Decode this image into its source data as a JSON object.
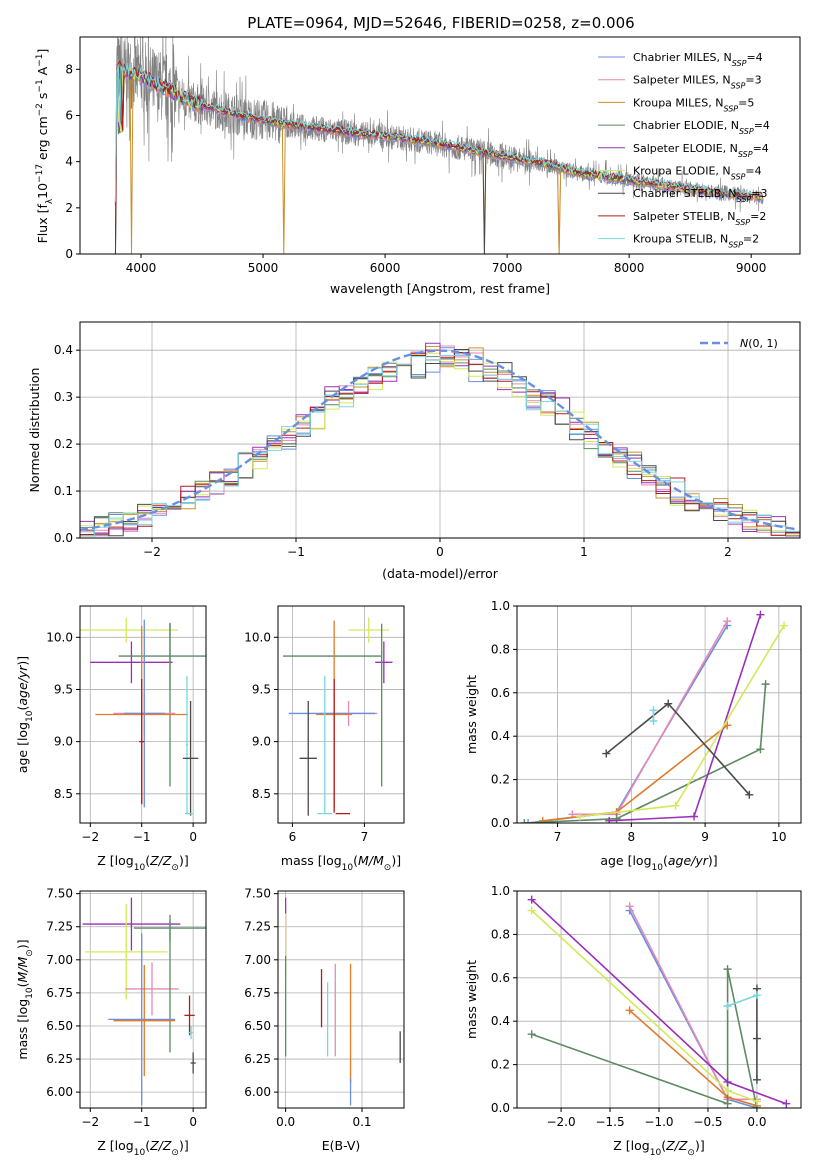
{
  "title": "PLATE=0964, MJD=52646, FIBERID=0258, z=0.006",
  "colors": {
    "Chabrier MILES": "#6b8fe0",
    "Salpeter MILES": "#e48ab8",
    "Kroupa MILES": "#c8902c",
    "Chabrier ELODIE": "#5d8a62",
    "Salpeter ELODIE": "#9a30b8",
    "Kroupa ELODIE": "#d6e85a",
    "Chabrier STELIB": "#4a4a4a",
    "Salpeter STELIB": "#b01c1c",
    "Kroupa STELIB": "#78d6df",
    "data": "#808080",
    "gauss": "#6a8fe0",
    "orange": "#e07b2a"
  },
  "chart_data": [
    {
      "id": "spectrum",
      "type": "line",
      "title": "PLATE=0964, MJD=52646, FIBERID=0258, z=0.006",
      "xlabel": "wavelength [Angstrom, rest frame]",
      "ylabel": "Flux [f_λ 10^-17 erg cm^-2 s^-1 A^-1]",
      "xlim": [
        3500,
        9400
      ],
      "ylim": [
        0,
        9.4
      ],
      "xticks": [
        4000,
        5000,
        6000,
        7000,
        8000,
        9000
      ],
      "yticks": [
        0,
        2,
        4,
        6,
        8
      ],
      "legend_position": "top-right",
      "legend": [
        {
          "label": "Chabrier MILES, N",
          "sub": "SSP",
          "suffix": "=4"
        },
        {
          "label": "Salpeter MILES, N",
          "sub": "SSP",
          "suffix": "=3"
        },
        {
          "label": "Kroupa MILES, N",
          "sub": "SSP",
          "suffix": "=5"
        },
        {
          "label": "Chabrier ELODIE, N",
          "sub": "SSP",
          "suffix": "=4"
        },
        {
          "label": "Salpeter ELODIE, N",
          "sub": "SSP",
          "suffix": "=4"
        },
        {
          "label": "Kroupa ELODIE, N",
          "sub": "SSP",
          "suffix": "=4"
        },
        {
          "label": "Chabrier STELIB, N",
          "sub": "SSP",
          "suffix": "=3"
        },
        {
          "label": "Salpeter STELIB, N",
          "sub": "SSP",
          "suffix": "=2"
        },
        {
          "label": "Kroupa STELIB, N",
          "sub": "SSP",
          "suffix": "=2"
        }
      ],
      "continuum": [
        [
          3800,
          8.0
        ],
        [
          3900,
          7.9
        ],
        [
          4000,
          7.7
        ],
        [
          4100,
          7.4
        ],
        [
          4200,
          7.2
        ],
        [
          4400,
          6.6
        ],
        [
          4600,
          6.3
        ],
        [
          4800,
          6.0
        ],
        [
          5000,
          5.8
        ],
        [
          5200,
          5.6
        ],
        [
          5500,
          5.4
        ],
        [
          5800,
          5.2
        ],
        [
          6000,
          5.1
        ],
        [
          6300,
          4.9
        ],
        [
          6500,
          4.7
        ],
        [
          6800,
          4.4
        ],
        [
          7000,
          4.2
        ],
        [
          7300,
          3.9
        ],
        [
          7600,
          3.5
        ],
        [
          8000,
          3.2
        ],
        [
          8500,
          2.8
        ],
        [
          9000,
          2.5
        ],
        [
          9100,
          2.45
        ]
      ]
    },
    {
      "id": "residuals",
      "type": "histogram",
      "xlabel": "(data-model)/error",
      "ylabel": "Normed distribution",
      "xlim": [
        -2.5,
        2.5
      ],
      "ylim": [
        0,
        0.46
      ],
      "xticks": [
        -2,
        -1,
        0,
        1,
        2
      ],
      "yticks": [
        0.0,
        0.1,
        0.2,
        0.3,
        0.4
      ],
      "legend_position": "top-right",
      "legend": "N(0,1)"
    },
    {
      "id": "age-vs-Z",
      "type": "errorbar",
      "xlabel": "Z [log10(Z/Z⊙)]",
      "ylabel": "age [log10(age/yr)]",
      "xlim": [
        -2.2,
        0.25
      ],
      "ylim": [
        8.22,
        10.3
      ],
      "xticks": [
        -2,
        -1,
        0
      ],
      "yticks": [
        8.5,
        9.0,
        9.5,
        10.0
      ],
      "points": [
        {
          "m": "Kroupa ELODIE",
          "x": -1.3,
          "y": 10.07,
          "xerr": 1.0,
          "yerr": 0.12
        },
        {
          "m": "Salpeter ELODIE",
          "x": -1.2,
          "y": 9.76,
          "xerr": 0.8,
          "yerr": 0.2
        },
        {
          "m": "Chabrier ELODIE",
          "x": -0.45,
          "y": 9.82,
          "xerr": 1.0,
          "yerr": 0.32
        },
        {
          "m": "Chabrier ELODIE",
          "x": -0.45,
          "y": 9.35,
          "xerr": 0.0,
          "yerr": 0.78
        },
        {
          "m": "Salpeter MILES",
          "x": -0.95,
          "y": 9.27,
          "xerr": 0.6,
          "yerr": 0.2
        },
        {
          "m": "Chabrier MILES",
          "x": -0.95,
          "y": 9.27,
          "xerr": 0.4,
          "yerr": 0.9
        },
        {
          "m": "Kroupa MILES",
          "x": -1.0,
          "y": 9.26,
          "xerr": 0.9,
          "yerr": 0.85
        },
        {
          "m": "Salpeter STELIB",
          "x": -1.0,
          "y": 9.0,
          "xerr": 0.05,
          "yerr": 0.6
        },
        {
          "m": "Kroupa STELIB",
          "x": -0.12,
          "y": 8.97,
          "xerr": 0.02,
          "yerr": 0.66
        },
        {
          "m": "Chabrier STELIB",
          "x": -0.05,
          "y": 8.84,
          "xerr": 0.15,
          "yerr": 0.55
        },
        {
          "m": "Kroupa STELIB",
          "x": -0.08,
          "y": 8.31,
          "xerr": 0.08,
          "yerr": 0.0
        }
      ]
    },
    {
      "id": "age-vs-mass",
      "type": "errorbar",
      "xlabel": "mass [log10(M/M⊙)]",
      "ylabel": "",
      "xlim": [
        5.8,
        7.55
      ],
      "ylim": [
        8.22,
        10.3
      ],
      "xticks": [
        6,
        7
      ],
      "yticks": [
        8.5,
        9.0,
        9.5,
        10.0
      ],
      "points": [
        {
          "m": "Kroupa ELODIE",
          "x": 7.06,
          "y": 10.07,
          "xerr": 0.28,
          "yerr": 0.12
        },
        {
          "m": "Salpeter ELODIE",
          "x": 7.27,
          "y": 9.76,
          "xerr": 0.12,
          "yerr": 0.2
        },
        {
          "m": "Chabrier ELODIE",
          "x": 6.55,
          "y": 9.82,
          "xerr": 0.68,
          "yerr": 0.0
        },
        {
          "m": "Chabrier ELODIE",
          "x": 7.24,
          "y": 9.35,
          "xerr": 0.0,
          "yerr": 0.78
        },
        {
          "m": "Salpeter MILES",
          "x": 6.78,
          "y": 9.27,
          "xerr": 0.4,
          "yerr": 0.12
        },
        {
          "m": "Chabrier MILES",
          "x": 6.55,
          "y": 9.27,
          "xerr": 0.6,
          "yerr": 0.0
        },
        {
          "m": "Kroupa MILES",
          "x": 6.58,
          "y": 9.26,
          "xerr": 0.25,
          "yerr": 0.9
        },
        {
          "m": "Kroupa STELIB",
          "x": 6.45,
          "y": 8.97,
          "xerr": 0.0,
          "yerr": 0.66
        },
        {
          "m": "Salpeter STELIB",
          "x": 6.58,
          "y": 8.96,
          "xerr": 0.0,
          "yerr": 0.64
        },
        {
          "m": "Chabrier STELIB",
          "x": 6.22,
          "y": 8.84,
          "xerr": 0.12,
          "yerr": 0.55
        },
        {
          "m": "Kroupa STELIB",
          "x": 6.45,
          "y": 8.31,
          "xerr": 0.1,
          "yerr": 0.0
        },
        {
          "m": "Salpeter STELIB",
          "x": 6.7,
          "y": 8.31,
          "xerr": 0.1,
          "yerr": 0.0
        }
      ]
    },
    {
      "id": "massweight-vs-age",
      "type": "line",
      "xlabel": "age [log10(age/yr)]",
      "ylabel": "mass weight",
      "xlim": [
        6.45,
        10.3
      ],
      "ylim": [
        0,
        1.0
      ],
      "xticks": [
        7,
        8,
        9,
        10
      ],
      "yticks": [
        0.0,
        0.2,
        0.4,
        0.6,
        0.8,
        1.0
      ],
      "series": [
        {
          "m": "Chabrier MILES",
          "x": [
            6.6,
            7.8,
            9.3
          ],
          "y": [
            0.0,
            0.05,
            0.91
          ]
        },
        {
          "m": "Salpeter MILES",
          "x": [
            7.2,
            7.8,
            9.3
          ],
          "y": [
            0.04,
            0.04,
            0.93
          ]
        },
        {
          "m": "Kroupa MILES",
          "x": [
            6.8,
            7.8,
            9.3
          ],
          "y": [
            0.01,
            0.05,
            0.45
          ]
        },
        {
          "m": "Chabrier ELODIE",
          "x": [
            6.55,
            7.8,
            9.75,
            9.82
          ],
          "y": [
            0.0,
            0.02,
            0.34,
            0.64
          ]
        },
        {
          "m": "Salpeter ELODIE",
          "x": [
            7.7,
            8.85,
            9.75
          ],
          "y": [
            0.01,
            0.03,
            0.96
          ]
        },
        {
          "m": "Kroupa ELODIE",
          "x": [
            7.3,
            8.6,
            10.07
          ],
          "y": [
            0.03,
            0.08,
            0.91
          ]
        },
        {
          "m": "Chabrier STELIB",
          "x": [
            7.66,
            8.5,
            9.6
          ],
          "y": [
            0.32,
            0.55,
            0.13
          ]
        },
        {
          "m": "Salpeter STELIB",
          "x": [],
          "y": []
        },
        {
          "m": "Kroupa STELIB",
          "x": [
            8.3,
            8.3
          ],
          "y": [
            0.52,
            0.47
          ]
        }
      ]
    },
    {
      "id": "mass-vs-Z",
      "type": "errorbar",
      "xlabel": "Z [log10(Z/Z⊙)]",
      "ylabel": "mass [log10(M/M⊙)]",
      "xlim": [
        -2.2,
        0.25
      ],
      "ylim": [
        5.88,
        7.52
      ],
      "xticks": [
        -2,
        -1,
        0
      ],
      "yticks": [
        6.0,
        6.25,
        6.5,
        6.75,
        7.0,
        7.25,
        7.5
      ],
      "points": [
        {
          "m": "Salpeter ELODIE",
          "x": -1.2,
          "y": 7.27,
          "xerr": 0.95,
          "yerr": 0.2
        },
        {
          "m": "Chabrier ELODIE",
          "x": -0.45,
          "y": 7.24,
          "xerr": 0.7,
          "yerr": 0.1
        },
        {
          "m": "Kroupa ELODIE",
          "x": -1.3,
          "y": 7.06,
          "xerr": 0.8,
          "yerr": 0.36
        },
        {
          "m": "Salpeter MILES",
          "x": -0.8,
          "y": 6.78,
          "xerr": 0.52,
          "yerr": 0.2
        },
        {
          "m": "Chabrier ELODIE",
          "x": -0.45,
          "y": 6.8,
          "xerr": 0.0,
          "yerr": 0.5
        },
        {
          "m": "Chabrier MILES",
          "x": -1.0,
          "y": 6.55,
          "xerr": 0.65,
          "yerr": 0.65
        },
        {
          "m": "Kroupa MILES",
          "x": -0.95,
          "y": 6.54,
          "xerr": 0.6,
          "yerr": 0.42
        },
        {
          "m": "Salpeter STELIB",
          "x": -0.07,
          "y": 6.58,
          "xerr": 0.1,
          "yerr": 0.15
        },
        {
          "m": "Kroupa STELIB",
          "x": -0.04,
          "y": 6.45,
          "xerr": 0.05,
          "yerr": 0.05
        },
        {
          "m": "Chabrier STELIB",
          "x": 0.0,
          "y": 6.22,
          "xerr": 0.05,
          "yerr": 0.08
        }
      ]
    },
    {
      "id": "mass-vs-EBV",
      "type": "errorbar",
      "xlabel": "E(B-V)",
      "ylabel": "",
      "xlim": [
        -0.01,
        0.155
      ],
      "ylim": [
        5.88,
        7.52
      ],
      "xticks": [
        0.0,
        0.1
      ],
      "yticks": [
        6.0,
        6.25,
        6.5,
        6.75,
        7.0,
        7.25,
        7.5
      ],
      "points": [
        {
          "m": "Salpeter ELODIE",
          "x": 0.0,
          "y": 7.25,
          "xerr": 0,
          "yerr": 0.22
        },
        {
          "m": "Kroupa ELODIE",
          "x": 0.0,
          "y": 7.1,
          "xerr": 0,
          "yerr": 0.25
        },
        {
          "m": "Chabrier ELODIE",
          "x": 0.0,
          "y": 6.65,
          "xerr": 0,
          "yerr": 0.38
        },
        {
          "m": "Salpeter STELIB",
          "x": 0.047,
          "y": 6.71,
          "xerr": 0,
          "yerr": 0.22
        },
        {
          "m": "Kroupa STELIB",
          "x": 0.055,
          "y": 6.55,
          "xerr": 0,
          "yerr": 0.28
        },
        {
          "m": "Salpeter MILES",
          "x": 0.065,
          "y": 6.62,
          "xerr": 0,
          "yerr": 0.35
        },
        {
          "m": "Kroupa MILES",
          "x": 0.085,
          "y": 6.52,
          "xerr": 0,
          "yerr": 0.45
        },
        {
          "m": "Chabrier MILES",
          "x": 0.085,
          "y": 6.0,
          "xerr": 0,
          "yerr": 0.1
        },
        {
          "m": "Chabrier STELIB",
          "x": 0.15,
          "y": 6.34,
          "xerr": 0,
          "yerr": 0.12
        }
      ]
    },
    {
      "id": "massweight-vs-Z",
      "type": "line",
      "xlabel": "Z [log10(Z/Z⊙)]",
      "ylabel": "mass weight",
      "xlim": [
        -2.45,
        0.45
      ],
      "ylim": [
        0,
        1.0
      ],
      "xticks": [
        -2.0,
        -1.5,
        -1.0,
        -0.5,
        0.0
      ],
      "yticks": [
        0.0,
        0.2,
        0.4,
        0.6,
        0.8,
        1.0
      ],
      "series": [
        {
          "m": "Chabrier MILES",
          "x": [
            -1.3,
            -0.3,
            0.0
          ],
          "y": [
            0.91,
            0.04,
            0.0
          ]
        },
        {
          "m": "Salpeter MILES",
          "x": [
            -1.3,
            -0.3,
            0.0
          ],
          "y": [
            0.93,
            0.04,
            0.04
          ]
        },
        {
          "m": "Kroupa MILES",
          "x": [
            -1.3,
            -0.3,
            0.0
          ],
          "y": [
            0.45,
            0.05,
            0.01
          ]
        },
        {
          "m": "Chabrier ELODIE",
          "x": [
            -2.3,
            -0.3,
            -0.3,
            0.0
          ],
          "y": [
            0.34,
            0.02,
            0.64,
            0.0
          ]
        },
        {
          "m": "Salpeter ELODIE",
          "x": [
            -2.3,
            -0.3,
            0.3
          ],
          "y": [
            0.96,
            0.12,
            0.02
          ]
        },
        {
          "m": "Kroupa ELODIE",
          "x": [
            -2.3,
            -0.3,
            0.0
          ],
          "y": [
            0.91,
            0.08,
            0.03
          ]
        },
        {
          "m": "Chabrier STELIB",
          "x": [
            0.0,
            0.0,
            0.0
          ],
          "y": [
            0.55,
            0.32,
            0.13
          ]
        },
        {
          "m": "Salpeter STELIB",
          "x": [],
          "y": []
        },
        {
          "m": "Kroupa STELIB",
          "x": [
            -0.3,
            0.0
          ],
          "y": [
            0.47,
            0.52
          ]
        }
      ]
    }
  ]
}
